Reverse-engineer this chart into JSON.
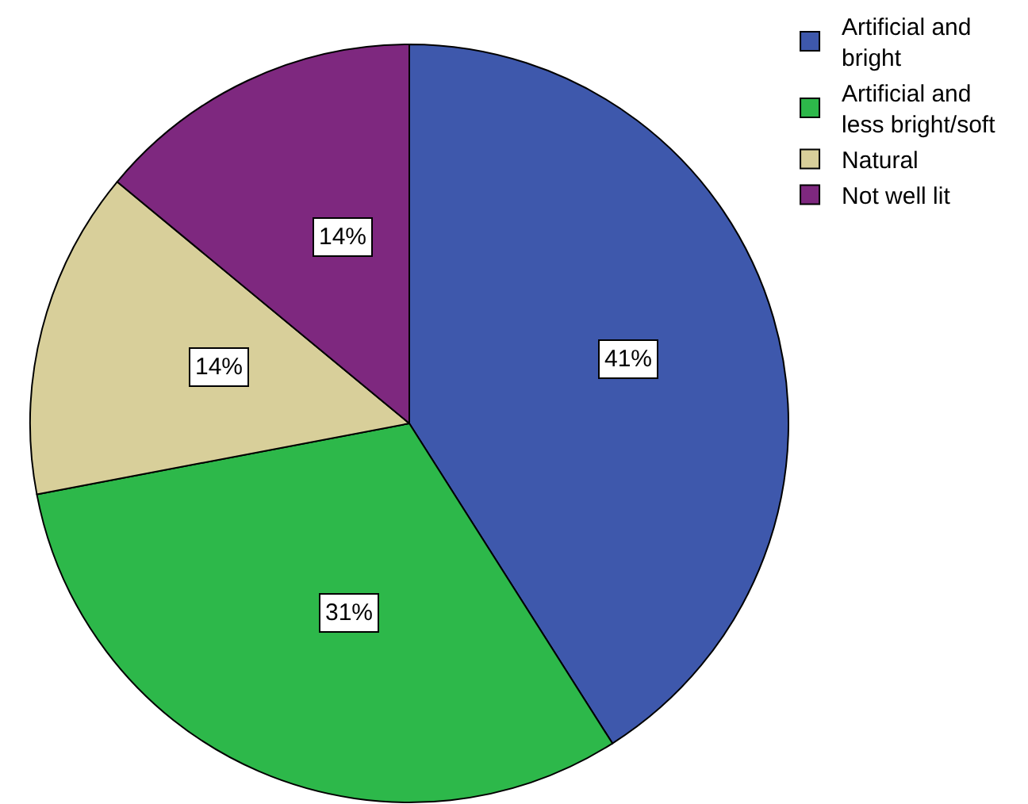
{
  "chart_data": {
    "type": "pie",
    "categories": [
      "Artificial and bright",
      "Artificial and less bright/soft",
      "Natural",
      "Not well lit"
    ],
    "values": [
      41,
      31,
      14,
      14
    ],
    "colors": [
      "#3e58ac",
      "#2db84a",
      "#d8cf9a",
      "#7e287f"
    ],
    "value_labels": [
      "41%",
      "31%",
      "14%",
      "14%"
    ],
    "legend": "top right"
  }
}
